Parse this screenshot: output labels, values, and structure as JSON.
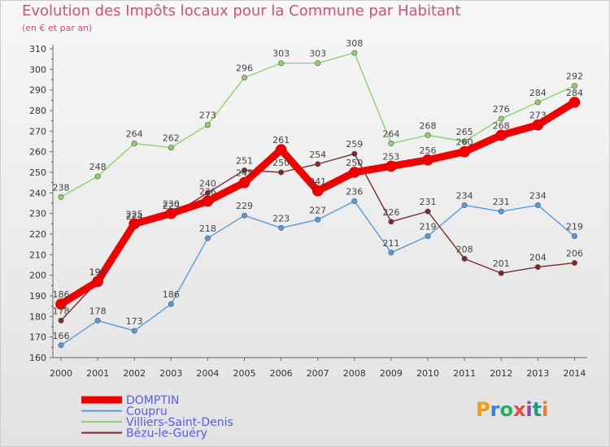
{
  "title": "Evolution des Impôts locaux pour la Commune par Habitant",
  "subtitle": "(en € et par an)",
  "logo": {
    "text": "Proxiti",
    "colors": [
      "#f39c12",
      "#2e86de",
      "#27ae60",
      "#e74c3c",
      "#8e44ad",
      "#16a085",
      "#e67e22"
    ]
  },
  "chart_data": {
    "type": "line",
    "title": "Evolution des Impôts locaux pour la Commune par Habitant",
    "subtitle": "(en € et par an)",
    "xlabel": "",
    "ylabel": "",
    "x": [
      "2000",
      "2001",
      "2002",
      "2003",
      "2004",
      "2005",
      "2006",
      "2007",
      "2008",
      "2009",
      "2010",
      "2011",
      "2012",
      "2013",
      "2014"
    ],
    "ylim": [
      160,
      310
    ],
    "yticks": [
      160,
      170,
      180,
      190,
      200,
      210,
      220,
      230,
      240,
      250,
      260,
      270,
      280,
      290,
      300,
      310
    ],
    "grid": false,
    "legend_position": "bottom-left",
    "series": [
      {
        "name": "DOMPTIN",
        "color": "#ee0000",
        "emphasis": true,
        "values": [
          186,
          197,
          225,
          230,
          236,
          245,
          261,
          241,
          250,
          253,
          256,
          260,
          268,
          273,
          284
        ],
        "labels": [
          "186",
          "197",
          "225",
          "230",
          "236",
          "245",
          "261",
          "241",
          "250",
          "253",
          "256",
          "260",
          "268",
          "273",
          "284"
        ]
      },
      {
        "name": "Coupru",
        "color": "#5b9bd5",
        "values": [
          166,
          178,
          173,
          186,
          218,
          229,
          223,
          227,
          236,
          211,
          219,
          234,
          231,
          234,
          219
        ],
        "labels": [
          "166",
          "178",
          "173",
          "186",
          "218",
          "229",
          "223",
          "227",
          "236",
          "211",
          "219",
          "234",
          "231",
          "234",
          "219"
        ]
      },
      {
        "name": "Villiers-Saint-Denis",
        "color": "#8fd16a",
        "values": [
          238,
          248,
          264,
          262,
          273,
          296,
          303,
          303,
          308,
          264,
          268,
          265,
          276,
          284,
          292
        ],
        "labels": [
          "238",
          "248",
          "264",
          "262",
          "273",
          "296",
          "303",
          "303",
          "308",
          "264",
          "268",
          "265",
          "276",
          "284",
          "292"
        ]
      },
      {
        "name": "Bézu-le-Guéry",
        "color": "#7b2a2a",
        "values": [
          178,
          197,
          224,
          229,
          240,
          251,
          250,
          254,
          259,
          226,
          231,
          208,
          201,
          204,
          206
        ],
        "labels": [
          "178",
          "197",
          "224",
          "229",
          "240",
          "251",
          "250",
          "254",
          "259",
          "226",
          "231",
          "208",
          "201",
          "204",
          "206"
        ]
      }
    ]
  }
}
